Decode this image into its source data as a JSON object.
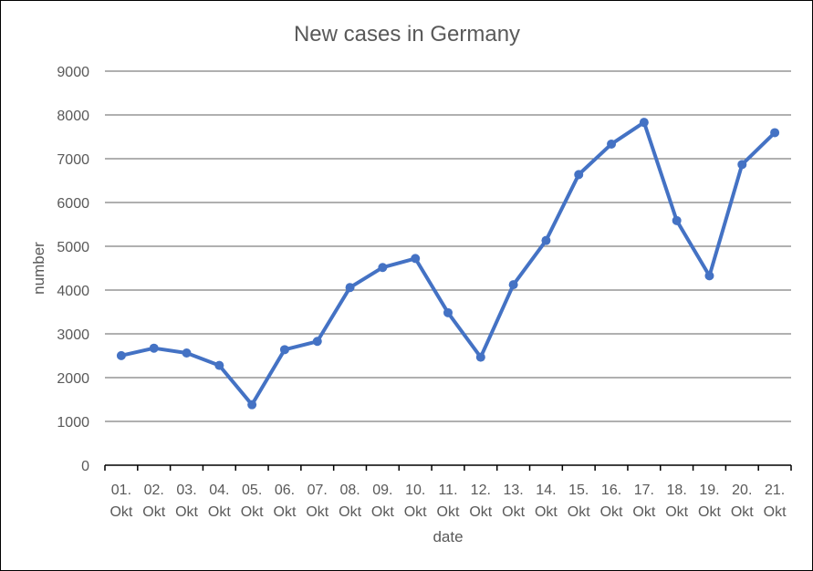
{
  "chart_data": {
    "type": "line",
    "title": "New cases in Germany",
    "xlabel": "date",
    "ylabel": "number",
    "ylim": [
      0,
      9000
    ],
    "y_ticks": [
      0,
      1000,
      2000,
      3000,
      4000,
      5000,
      6000,
      7000,
      8000,
      9000
    ],
    "grid": true,
    "categories": [
      [
        "01.",
        "Okt"
      ],
      [
        "02.",
        "Okt"
      ],
      [
        "03.",
        "Okt"
      ],
      [
        "04.",
        "Okt"
      ],
      [
        "05.",
        "Okt"
      ],
      [
        "06.",
        "Okt"
      ],
      [
        "07.",
        "Okt"
      ],
      [
        "08.",
        "Okt"
      ],
      [
        "09.",
        "Okt"
      ],
      [
        "10.",
        "Okt"
      ],
      [
        "11.",
        "Okt"
      ],
      [
        "12.",
        "Okt"
      ],
      [
        "13.",
        "Okt"
      ],
      [
        "14.",
        "Okt"
      ],
      [
        "15.",
        "Okt"
      ],
      [
        "16.",
        "Okt"
      ],
      [
        "17.",
        "Okt"
      ],
      [
        "18.",
        "Okt"
      ],
      [
        "19.",
        "Okt"
      ],
      [
        "20.",
        "Okt"
      ],
      [
        "21.",
        "Okt"
      ]
    ],
    "series": [
      {
        "color": "#4472C4",
        "values": [
          2503,
          2673,
          2563,
          2279,
          1382,
          2639,
          2828,
          4058,
          4516,
          4721,
          3483,
          2467,
          4122,
          5132,
          6638,
          7334,
          7830,
          5587,
          4325,
          6868,
          7595
        ]
      }
    ]
  }
}
